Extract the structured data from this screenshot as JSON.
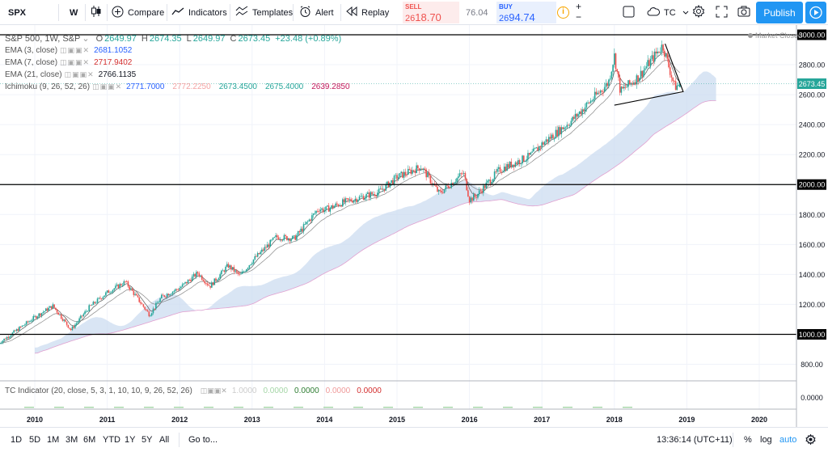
{
  "toolbar": {
    "symbol": "SPX",
    "interval": "W",
    "compare": "Compare",
    "indicators": "Indicators",
    "templates": "Templates",
    "alert": "Alert",
    "replay": "Replay",
    "chart_style": "TC",
    "publish": "Publish"
  },
  "trade": {
    "sell_label": "SELL",
    "sell_prefix": "26",
    "sell_main": "18.70",
    "spread": "76.04",
    "buy_label": "BUY",
    "buy_prefix": "26",
    "buy_main": "94.74",
    "sell_color": "#ef5350",
    "buy_color": "#2962ff"
  },
  "legend": {
    "title": "S&P 500, 1W, S&P",
    "o_label": "O",
    "o": "2649.97",
    "h_label": "H",
    "h": "2674.35",
    "l_label": "L",
    "l": "2649.97",
    "c_label": "C",
    "c": "2673.45",
    "change": "+23.48 (+0.89%)",
    "ema3_name": "EMA (3, close)",
    "ema3": "2681.1052",
    "ema7_name": "EMA (7, close)",
    "ema7": "2717.9402",
    "ema21_name": "EMA (21, close)",
    "ema21": "2766.1135",
    "ichi_name": "Ichimoku (9, 26, 52, 26)",
    "ichi_1": "2771.7000",
    "ichi_2": "2772.2250",
    "ichi_3": "2673.4500",
    "ichi_4": "2675.4000",
    "ichi_5": "2639.2850",
    "market_status": "Market Closed"
  },
  "tc_indicator": {
    "name": "TC Indicator (20, close, 5, 3, 1, 10, 10, 9, 26, 52, 26)",
    "v1": "1.0000",
    "v2": "0.0000",
    "v3": "0.0000",
    "v4": "0.0000",
    "v5": "0.0000"
  },
  "price_axis": {
    "ticks": [
      "3000.00",
      "2800.00",
      "2600.00",
      "2400.00",
      "2200.00",
      "2000.00",
      "1800.00",
      "1600.00",
      "1400.00",
      "1200.00",
      "1000.00",
      "800.00"
    ],
    "current": "2673.45",
    "tc_tick": "0.0000"
  },
  "time_axis": {
    "labels": [
      "2010",
      "2011",
      "2012",
      "2013",
      "2014",
      "2015",
      "2016",
      "2017",
      "2018",
      "2019",
      "2020"
    ]
  },
  "bottom": {
    "ranges": [
      "1D",
      "5D",
      "1M",
      "3M",
      "6M",
      "YTD",
      "1Y",
      "5Y",
      "All"
    ],
    "goto": "Go to...",
    "clock": "13:36:14 (UTC+11)",
    "pct": "%",
    "log": "log",
    "auto": "auto"
  },
  "colors": {
    "up": "#26a69a",
    "down": "#ef5350",
    "cloud": "#c9daf0",
    "accent": "#2196f3"
  },
  "chart_data": {
    "type": "candlestick",
    "title": "S&P 500, 1W, S&P",
    "x": [
      "2009-07",
      "2010",
      "2010-04",
      "2010-07",
      "2010-10",
      "2011",
      "2011-04",
      "2011-08",
      "2011-10",
      "2012",
      "2012-04",
      "2012-06",
      "2012-09",
      "2012-11",
      "2013",
      "2013-05",
      "2013-08",
      "2013-12",
      "2014",
      "2014-04",
      "2014-10",
      "2015",
      "2015-05",
      "2015-08",
      "2015-12",
      "2016",
      "2016-02",
      "2016-06",
      "2016-11",
      "2017",
      "2017-06",
      "2017-12",
      "2018-01",
      "2018-02",
      "2018-05",
      "2018-09",
      "2018-11",
      "2018-12"
    ],
    "close": [
      940,
      1115,
      1190,
      1030,
      1180,
      1280,
      1350,
      1130,
      1250,
      1310,
      1410,
      1320,
      1460,
      1390,
      1490,
      1650,
      1640,
      1840,
      1830,
      1880,
      1950,
      2050,
      2120,
      1940,
      2080,
      1900,
      1920,
      2100,
      2190,
      2270,
      2430,
      2680,
      2860,
      2620,
      2720,
      2930,
      2650,
      2673.45
    ],
    "ylim": [
      700,
      3000
    ],
    "horizontal_lines": [
      3000,
      2000,
      1000
    ],
    "last_price": 2673.45
  }
}
